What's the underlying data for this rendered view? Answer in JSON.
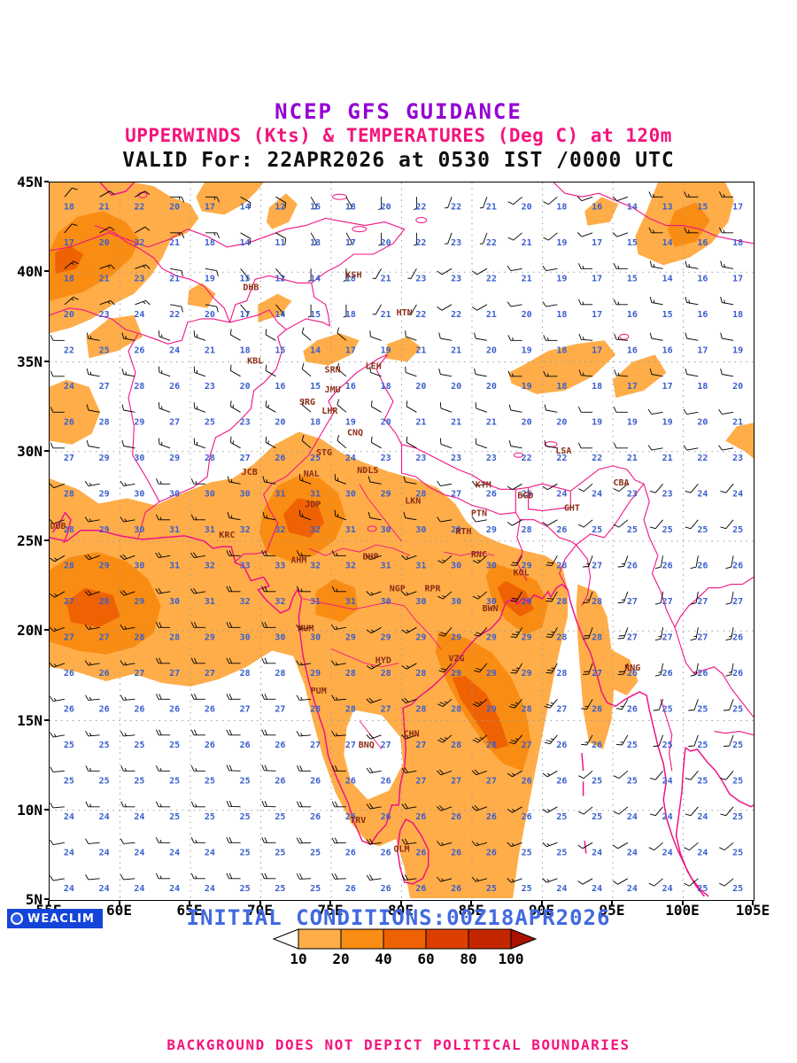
{
  "header": {
    "line1": "NCEP GFS GUIDANCE",
    "line2": "UPPERWINDS (Kts) & TEMPERATURES (Deg C) at 120m",
    "line3": "VALID For: 22APR2026 at 0530 IST /0000 UTC"
  },
  "axes": {
    "lat_ticks": [
      {
        "label": "45N",
        "deg": 45
      },
      {
        "label": "40N",
        "deg": 40
      },
      {
        "label": "35N",
        "deg": 35
      },
      {
        "label": "30N",
        "deg": 30
      },
      {
        "label": "25N",
        "deg": 25
      },
      {
        "label": "20N",
        "deg": 20
      },
      {
        "label": "15N",
        "deg": 15
      },
      {
        "label": "10N",
        "deg": 10
      },
      {
        "label": "5N",
        "deg": 5
      }
    ],
    "lon_ticks": [
      {
        "label": "55E",
        "deg": 55
      },
      {
        "label": "60E",
        "deg": 60
      },
      {
        "label": "65E",
        "deg": 65
      },
      {
        "label": "70E",
        "deg": 70
      },
      {
        "label": "75E",
        "deg": 75
      },
      {
        "label": "80E",
        "deg": 80
      },
      {
        "label": "85E",
        "deg": 85
      },
      {
        "label": "90E",
        "deg": 90
      },
      {
        "label": "95E",
        "deg": 95
      },
      {
        "label": "100E",
        "deg": 100
      },
      {
        "label": "105E",
        "deg": 105
      }
    ]
  },
  "cities": [
    {
      "code": "DHB",
      "lon": 69.3,
      "lat": 39.0
    },
    {
      "code": "KSH",
      "lon": 76.6,
      "lat": 39.7
    },
    {
      "code": "HTN",
      "lon": 80.2,
      "lat": 37.6
    },
    {
      "code": "KBL",
      "lon": 69.6,
      "lat": 34.9
    },
    {
      "code": "LEH",
      "lon": 78.0,
      "lat": 34.6
    },
    {
      "code": "SRN",
      "lon": 75.1,
      "lat": 34.4
    },
    {
      "code": "JMU",
      "lon": 75.1,
      "lat": 33.3
    },
    {
      "code": "SRG",
      "lon": 73.3,
      "lat": 32.6
    },
    {
      "code": "LHR",
      "lon": 74.9,
      "lat": 32.1
    },
    {
      "code": "CNQ",
      "lon": 76.7,
      "lat": 30.9
    },
    {
      "code": "STG",
      "lon": 74.5,
      "lat": 29.8
    },
    {
      "code": "JCB",
      "lon": 69.2,
      "lat": 28.7
    },
    {
      "code": "NAL",
      "lon": 73.6,
      "lat": 28.6
    },
    {
      "code": "NDLS",
      "lon": 77.6,
      "lat": 28.8
    },
    {
      "code": "KTM",
      "lon": 85.8,
      "lat": 28.0
    },
    {
      "code": "LSA",
      "lon": 91.5,
      "lat": 29.9
    },
    {
      "code": "CBA",
      "lon": 95.6,
      "lat": 28.1
    },
    {
      "code": "BGD",
      "lon": 88.8,
      "lat": 27.4
    },
    {
      "code": "GHT",
      "lon": 92.1,
      "lat": 26.7
    },
    {
      "code": "JDP",
      "lon": 73.7,
      "lat": 26.9
    },
    {
      "code": "LKN",
      "lon": 80.8,
      "lat": 27.1
    },
    {
      "code": "PTN",
      "lon": 85.5,
      "lat": 26.4
    },
    {
      "code": "RTH",
      "lon": 84.4,
      "lat": 25.4
    },
    {
      "code": "KRC",
      "lon": 67.6,
      "lat": 25.2
    },
    {
      "code": "DUB",
      "lon": 55.6,
      "lat": 25.7
    },
    {
      "code": "AHM",
      "lon": 72.7,
      "lat": 23.8
    },
    {
      "code": "BHP",
      "lon": 77.8,
      "lat": 24.0
    },
    {
      "code": "RNC",
      "lon": 85.5,
      "lat": 24.1
    },
    {
      "code": "KOL",
      "lon": 88.5,
      "lat": 23.1
    },
    {
      "code": "NGP",
      "lon": 79.7,
      "lat": 22.2
    },
    {
      "code": "RPR",
      "lon": 82.2,
      "lat": 22.2
    },
    {
      "code": "BWN",
      "lon": 86.3,
      "lat": 21.1
    },
    {
      "code": "MUM",
      "lon": 73.2,
      "lat": 20.0
    },
    {
      "code": "HYD",
      "lon": 78.7,
      "lat": 18.2
    },
    {
      "code": "VZG",
      "lon": 83.9,
      "lat": 18.3
    },
    {
      "code": "PUM",
      "lon": 74.1,
      "lat": 16.5
    },
    {
      "code": "RNG",
      "lon": 96.4,
      "lat": 17.8
    },
    {
      "code": "CHN",
      "lon": 80.7,
      "lat": 14.1
    },
    {
      "code": "BNQ",
      "lon": 77.5,
      "lat": 13.5
    },
    {
      "code": "TRV",
      "lon": 76.9,
      "lat": 9.3
    },
    {
      "code": "QLM",
      "lon": 80.0,
      "lat": 7.7
    }
  ],
  "legend": {
    "labels": [
      "10",
      "20",
      "40",
      "60",
      "80",
      "100"
    ],
    "colors": [
      "#FFAD49",
      "#F98C12",
      "#EE6203",
      "#DD3F00",
      "#C42600",
      "#A81300"
    ]
  },
  "footer": {
    "weaclim": "WEACLIM",
    "initial_conditions": "INITIAL CONDITIONS:00Z18APR2026",
    "disclaimer": "BACKGROUND DOES NOT DEPICT POLITICAL BOUNDARIES"
  },
  "colors": {
    "boundary": "#F01486",
    "temperature_numbers": "#3A5FCD",
    "city_labels": "#8B2D16",
    "grid": "#9C9C9C",
    "title_purple": "#9400D3",
    "title_pink": "#F4147C",
    "initial_blue": "#4169E1",
    "weaclim_bg": "#1544D8"
  },
  "chart_data": {
    "type": "heatmap",
    "title": "NCEP GFS GUIDANCE",
    "subtitle": "UPPERWINDS (Kts) & TEMPERATURES (Deg C) at 120m",
    "valid": "22APR2026 at 0530 IST /0000 UTC",
    "initial": "00Z18APR2026",
    "region": {
      "lon_range": [
        55,
        105
      ],
      "lat_range": [
        5,
        45
      ]
    },
    "shading_field": "wind speed (Kts)",
    "shading_levels": [
      10,
      20,
      40,
      60,
      80,
      100
    ],
    "shading_colors": [
      "#FFAD49",
      "#F98C12",
      "#EE6203",
      "#DD3F00",
      "#C42600",
      "#A81300"
    ],
    "numbers_field": "temperature (Deg C)",
    "grid": {
      "lons": [
        56.25,
        58.75,
        61.25,
        63.75,
        66.25,
        68.75,
        71.25,
        73.75,
        76.25,
        78.75,
        81.25,
        83.75,
        86.25,
        88.75,
        91.25,
        93.75,
        96.25,
        98.75,
        101.25,
        103.75
      ],
      "lats": [
        44,
        42,
        40,
        38,
        36,
        34,
        32,
        30,
        28,
        26,
        24,
        22,
        20,
        18,
        16,
        14,
        12,
        10,
        8,
        6
      ],
      "temps": [
        [
          18,
          21,
          22,
          20,
          17,
          14,
          12,
          15,
          18,
          20,
          22,
          22,
          21,
          20,
          18,
          16,
          14,
          13,
          15,
          17
        ],
        [
          17,
          20,
          22,
          21,
          18,
          14,
          11,
          13,
          17,
          20,
          22,
          23,
          22,
          21,
          19,
          17,
          15,
          14,
          16,
          18
        ],
        [
          18,
          21,
          23,
          21,
          19,
          15,
          12,
          14,
          18,
          21,
          23,
          23,
          22,
          21,
          19,
          17,
          15,
          14,
          16,
          17
        ],
        [
          20,
          23,
          24,
          22,
          20,
          17,
          14,
          15,
          18,
          21,
          22,
          22,
          21,
          20,
          18,
          17,
          16,
          15,
          16,
          18
        ],
        [
          22,
          25,
          26,
          24,
          21,
          18,
          15,
          14,
          17,
          19,
          21,
          21,
          20,
          19,
          18,
          17,
          16,
          16,
          17,
          19
        ],
        [
          24,
          27,
          28,
          26,
          23,
          20,
          16,
          15,
          16,
          18,
          20,
          20,
          20,
          19,
          18,
          18,
          17,
          17,
          18,
          20
        ],
        [
          26,
          28,
          29,
          27,
          25,
          23,
          20,
          18,
          19,
          20,
          21,
          21,
          21,
          20,
          20,
          19,
          19,
          19,
          20,
          21
        ],
        [
          27,
          29,
          30,
          29,
          28,
          27,
          26,
          25,
          24,
          23,
          23,
          23,
          23,
          22,
          22,
          22,
          21,
          21,
          22,
          23
        ],
        [
          28,
          29,
          30,
          30,
          30,
          30,
          31,
          31,
          30,
          29,
          28,
          27,
          26,
          25,
          24,
          24,
          23,
          23,
          24,
          24
        ],
        [
          28,
          29,
          30,
          31,
          31,
          32,
          32,
          32,
          31,
          30,
          30,
          29,
          29,
          28,
          26,
          25,
          25,
          25,
          25,
          25
        ],
        [
          28,
          29,
          30,
          31,
          32,
          33,
          33,
          32,
          32,
          31,
          31,
          30,
          30,
          29,
          28,
          27,
          26,
          26,
          26,
          26
        ],
        [
          27,
          28,
          29,
          30,
          31,
          32,
          32,
          31,
          31,
          30,
          30,
          30,
          30,
          29,
          28,
          28,
          27,
          27,
          27,
          27
        ],
        [
          27,
          27,
          28,
          28,
          29,
          30,
          30,
          30,
          29,
          29,
          29,
          29,
          29,
          29,
          28,
          28,
          27,
          27,
          27,
          26
        ],
        [
          26,
          26,
          27,
          27,
          27,
          28,
          28,
          29,
          28,
          28,
          28,
          29,
          29,
          29,
          28,
          27,
          26,
          26,
          26,
          26
        ],
        [
          26,
          26,
          26,
          26,
          26,
          27,
          27,
          28,
          28,
          27,
          28,
          28,
          29,
          28,
          27,
          26,
          26,
          25,
          25,
          25
        ],
        [
          25,
          25,
          25,
          25,
          26,
          26,
          26,
          27,
          27,
          27,
          27,
          28,
          28,
          27,
          26,
          26,
          25,
          25,
          25,
          25
        ],
        [
          25,
          25,
          25,
          25,
          25,
          25,
          26,
          26,
          26,
          26,
          27,
          27,
          27,
          26,
          26,
          25,
          25,
          24,
          25,
          25
        ],
        [
          24,
          24,
          24,
          25,
          25,
          25,
          25,
          26,
          26,
          26,
          26,
          26,
          26,
          26,
          25,
          25,
          24,
          24,
          24,
          25
        ],
        [
          24,
          24,
          24,
          24,
          24,
          25,
          25,
          25,
          26,
          26,
          26,
          26,
          26,
          25,
          25,
          24,
          24,
          24,
          24,
          25
        ],
        [
          24,
          24,
          24,
          24,
          24,
          25,
          25,
          25,
          26,
          26,
          26,
          26,
          25,
          25,
          24,
          24,
          24,
          24,
          25,
          25
        ]
      ]
    },
    "wind": {
      "lons": [
        56,
        61,
        66,
        71,
        76,
        81,
        86,
        91,
        96,
        101
      ],
      "lats": [
        44,
        40,
        36,
        32,
        28,
        24,
        20,
        16,
        12,
        8
      ],
      "dir_speed": [
        [
          [
            40,
            10
          ],
          [
            60,
            10
          ],
          [
            90,
            15
          ],
          [
            120,
            10
          ],
          [
            150,
            5
          ],
          [
            180,
            5
          ],
          [
            200,
            5
          ],
          [
            230,
            10
          ],
          [
            250,
            10
          ],
          [
            270,
            15
          ]
        ],
        [
          [
            50,
            15
          ],
          [
            70,
            15
          ],
          [
            100,
            10
          ],
          [
            140,
            5
          ],
          [
            180,
            5
          ],
          [
            210,
            5
          ],
          [
            240,
            10
          ],
          [
            260,
            10
          ],
          [
            270,
            15
          ],
          [
            280,
            15
          ]
        ],
        [
          [
            270,
            10
          ],
          [
            280,
            15
          ],
          [
            290,
            15
          ],
          [
            300,
            10
          ],
          [
            310,
            10
          ],
          [
            290,
            10
          ],
          [
            280,
            10
          ],
          [
            270,
            15
          ],
          [
            275,
            15
          ],
          [
            280,
            10
          ]
        ],
        [
          [
            270,
            10
          ],
          [
            280,
            10
          ],
          [
            290,
            15
          ],
          [
            300,
            15
          ],
          [
            310,
            10
          ],
          [
            300,
            10
          ],
          [
            290,
            10
          ],
          [
            280,
            10
          ],
          [
            270,
            10
          ],
          [
            260,
            10
          ]
        ],
        [
          [
            250,
            10
          ],
          [
            260,
            15
          ],
          [
            270,
            15
          ],
          [
            280,
            15
          ],
          [
            290,
            15
          ],
          [
            280,
            10
          ],
          [
            260,
            10
          ],
          [
            240,
            10
          ],
          [
            230,
            10
          ],
          [
            220,
            10
          ]
        ],
        [
          [
            240,
            15
          ],
          [
            250,
            20
          ],
          [
            260,
            20
          ],
          [
            270,
            20
          ],
          [
            270,
            15
          ],
          [
            250,
            15
          ],
          [
            230,
            15
          ],
          [
            210,
            20
          ],
          [
            200,
            15
          ],
          [
            190,
            10
          ]
        ],
        [
          [
            250,
            15
          ],
          [
            260,
            15
          ],
          [
            270,
            20
          ],
          [
            270,
            20
          ],
          [
            260,
            15
          ],
          [
            240,
            15
          ],
          [
            220,
            20
          ],
          [
            210,
            25
          ],
          [
            200,
            20
          ],
          [
            190,
            15
          ]
        ],
        [
          [
            260,
            15
          ],
          [
            265,
            15
          ],
          [
            270,
            20
          ],
          [
            270,
            20
          ],
          [
            265,
            15
          ],
          [
            250,
            20
          ],
          [
            230,
            25
          ],
          [
            220,
            25
          ],
          [
            210,
            15
          ],
          [
            200,
            10
          ]
        ],
        [
          [
            265,
            10
          ],
          [
            270,
            15
          ],
          [
            270,
            15
          ],
          [
            272,
            20
          ],
          [
            270,
            20
          ],
          [
            260,
            20
          ],
          [
            250,
            20
          ],
          [
            240,
            15
          ],
          [
            230,
            10
          ],
          [
            220,
            10
          ]
        ],
        [
          [
            260,
            10
          ],
          [
            265,
            10
          ],
          [
            270,
            15
          ],
          [
            270,
            20
          ],
          [
            268,
            20
          ],
          [
            262,
            20
          ],
          [
            255,
            15
          ],
          [
            250,
            15
          ],
          [
            240,
            10
          ],
          [
            230,
            10
          ]
        ]
      ]
    }
  }
}
